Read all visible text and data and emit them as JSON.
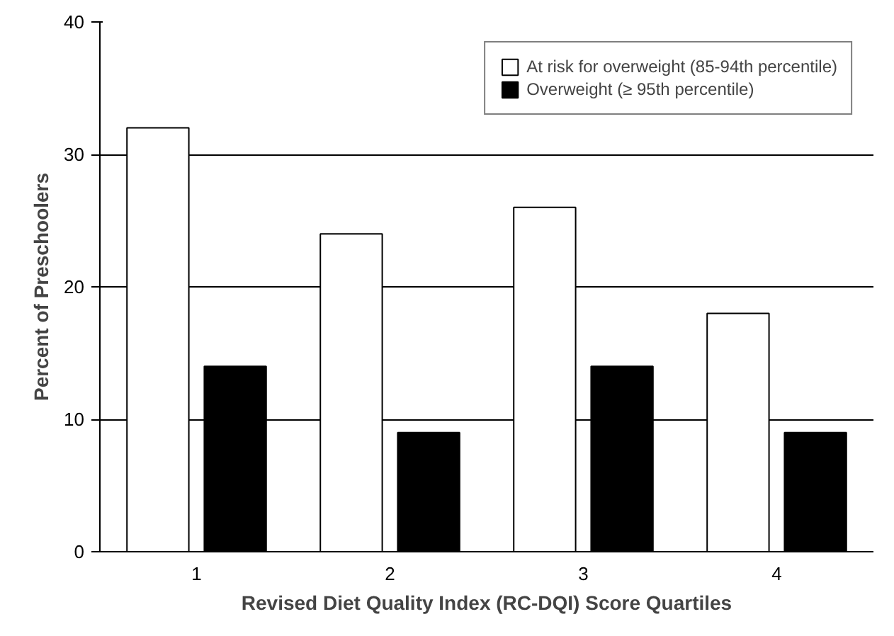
{
  "chart_data": {
    "type": "bar",
    "xlabel": "Revised Diet Quality Index (RC-DQI) Score Quartiles",
    "ylabel": "Percent of Preschoolers",
    "categories": [
      "1",
      "2",
      "3",
      "4"
    ],
    "series": [
      {
        "name": "At risk for overweight (85-94th percentile)",
        "color": "#ffffff",
        "values": [
          32,
          24,
          26,
          18
        ]
      },
      {
        "name": "Overweight (≥ 95th percentile)",
        "color": "#000000",
        "values": [
          14,
          9,
          14,
          9
        ]
      }
    ],
    "ylim": [
      0,
      40
    ],
    "yticks": [
      0,
      10,
      20,
      30,
      40
    ],
    "grid": "y",
    "legend": "top right"
  }
}
